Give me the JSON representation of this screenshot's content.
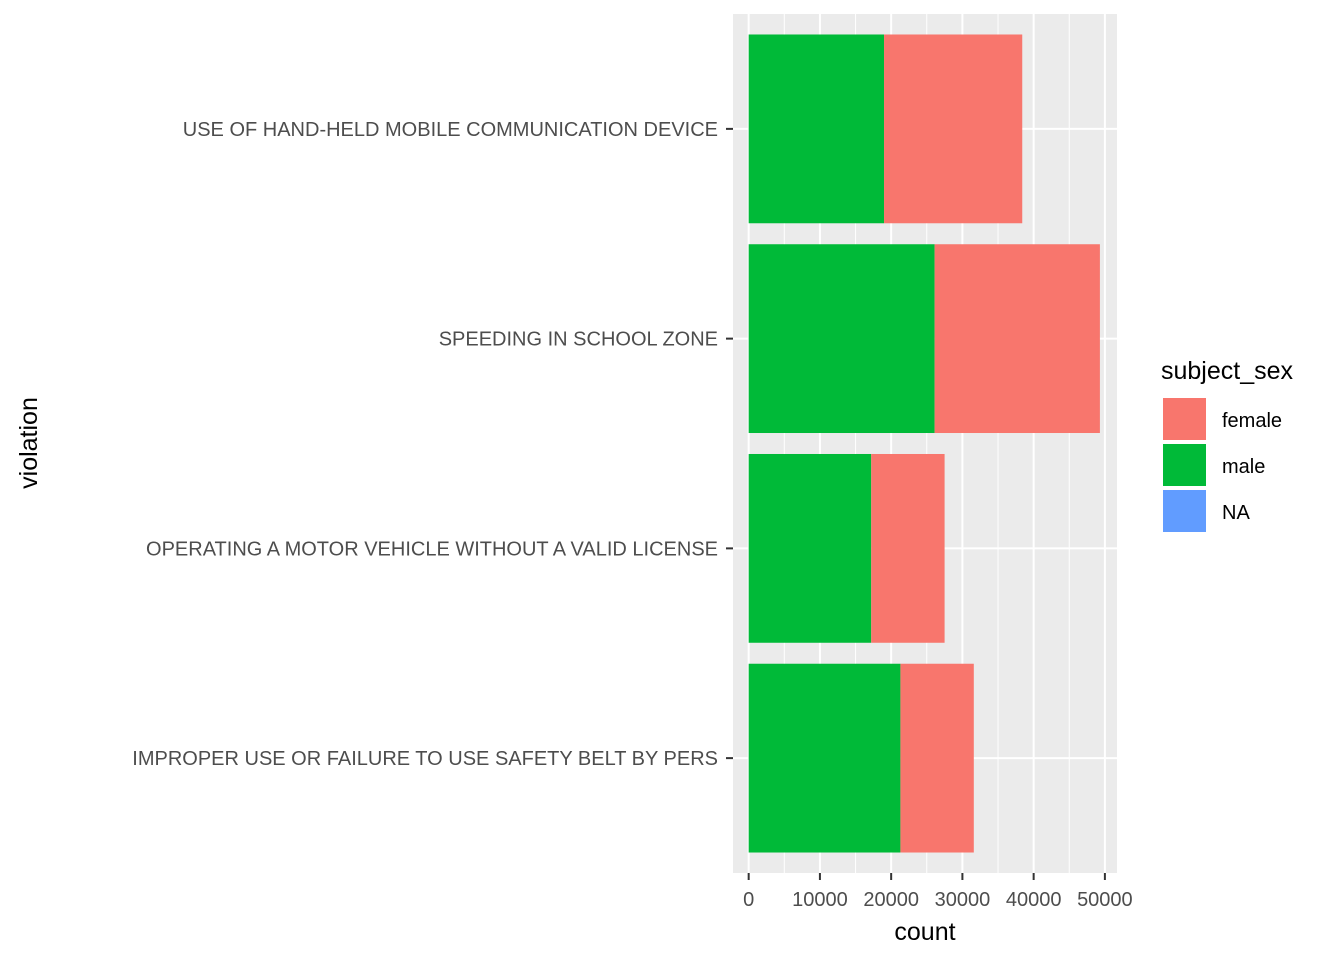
{
  "chart_data": {
    "type": "bar",
    "orientation": "horizontal",
    "stacked": true,
    "xlabel": "count",
    "ylabel": "violation",
    "xlim": [
      -2200,
      51700
    ],
    "x_ticks": [
      0,
      10000,
      20000,
      30000,
      40000,
      50000
    ],
    "x_tick_labels": [
      "0",
      "10000",
      "20000",
      "30000",
      "40000",
      "50000"
    ],
    "categories": [
      "USE OF HAND-HELD MOBILE COMMUNICATION DEVICE",
      "SPEEDING IN SCHOOL ZONE",
      "OPERATING A MOTOR VEHICLE WITHOUT A VALID LICENSE",
      "IMPROPER USE OR FAILURE TO USE SAFETY BELT BY PERS"
    ],
    "series": [
      {
        "name": "male",
        "color": "#00BA38",
        "values": [
          19000,
          26100,
          17200,
          21300
        ]
      },
      {
        "name": "female",
        "color": "#F8766D",
        "values": [
          19400,
          23200,
          10300,
          10300
        ]
      },
      {
        "name": "NA",
        "color": "#619CFF",
        "values": [
          0,
          0,
          0,
          0
        ]
      }
    ],
    "legend": {
      "title": "subject_sex",
      "placement": "right",
      "entries": [
        {
          "label": "female",
          "color": "#F8766D"
        },
        {
          "label": "male",
          "color": "#00BA38"
        },
        {
          "label": "NA",
          "color": "#619CFF"
        }
      ]
    },
    "grid": true,
    "panel_background": "#EBEBEB",
    "grid_color": "#FFFFFF"
  }
}
